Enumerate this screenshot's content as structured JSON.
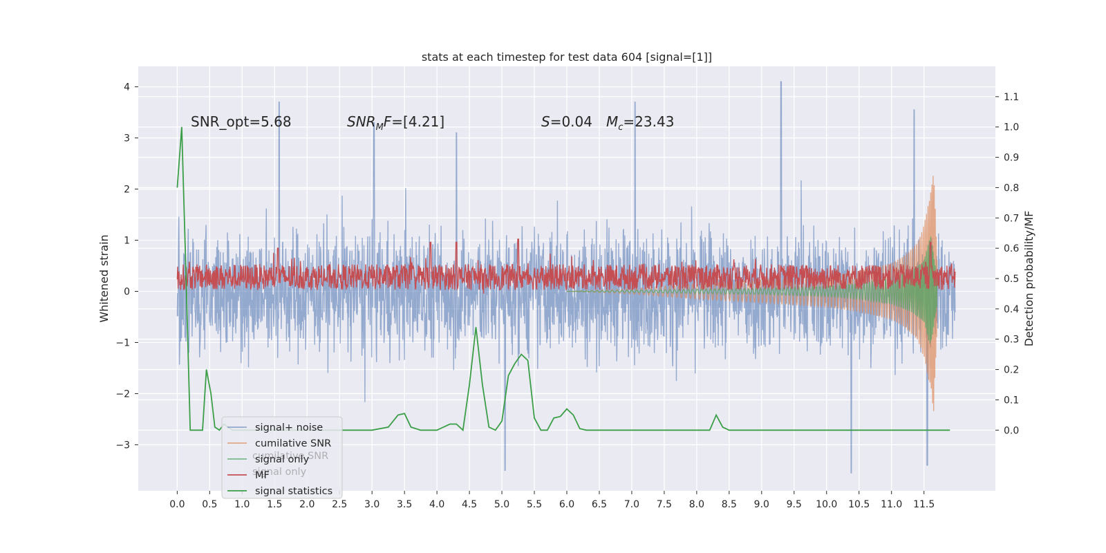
{
  "chart_data": {
    "type": "line",
    "title": "stats at each timestep for test data 604 [signal=[1]]",
    "xlabel": "",
    "ylabel": "Whitened strain",
    "y2label": "Detection probability/MF",
    "xlim": [
      -0.6,
      12.6
    ],
    "ylim": [
      -3.9,
      4.4
    ],
    "y2lim": [
      -0.2,
      1.2
    ],
    "grid": true,
    "legend_position": "lower-left",
    "x_ticks": [
      0.0,
      0.5,
      1.0,
      1.5,
      2.0,
      2.5,
      3.0,
      3.5,
      4.0,
      4.5,
      5.0,
      5.5,
      6.0,
      6.5,
      7.0,
      7.5,
      8.0,
      8.5,
      9.0,
      9.5,
      10.0,
      10.5,
      11.0,
      11.5
    ],
    "y_ticks": [
      -3,
      -2,
      -1,
      0,
      1,
      2,
      3,
      4
    ],
    "y2_ticks": [
      0.0,
      0.1,
      0.2,
      0.3,
      0.4,
      0.5,
      0.6,
      0.7,
      0.8,
      0.9,
      1.0,
      1.1
    ],
    "annotations": [
      "SNR_opt=5.68",
      "SNR_MF=[4.21]",
      "S=0.04",
      "M_c=23.43"
    ],
    "legend_ghost": [
      "cumilative SNR",
      "signal only"
    ],
    "colors": {
      "background": "#eaeaf2",
      "grid": "#ffffff",
      "signal_noise": "#4c72b0",
      "cumulative_snr": "#dd8452",
      "signal_only": "#55a868",
      "mf": "#c44e52",
      "signal_statistics": "#3a9e47"
    },
    "series": [
      {
        "name": "signal+ noise",
        "style": "dense noise band, amplitude about ±1.5 with peaks to ±4",
        "x_range": [
          0.0,
          11.98
        ],
        "typical_amplitude": 1.5,
        "peaks": [
          [
            1.57,
            3.7
          ],
          [
            3.03,
            3.3
          ],
          [
            4.3,
            3.1
          ],
          [
            9.3,
            4.1
          ],
          [
            11.35,
            3.55
          ],
          [
            7.05,
            3.7
          ],
          [
            5.05,
            -3.5
          ],
          [
            10.38,
            -3.55
          ],
          [
            11.55,
            -3.4
          ]
        ]
      },
      {
        "name": "cumilative SNR",
        "style": "chirp growing towards merger",
        "x": [
          6.0,
          7.0,
          8.0,
          9.0,
          10.0,
          10.5,
          11.0,
          11.2,
          11.4,
          11.5,
          11.6,
          11.65,
          11.7
        ],
        "envelope": [
          0.0,
          0.05,
          0.15,
          0.22,
          0.3,
          0.4,
          0.55,
          0.7,
          0.95,
          1.3,
          1.9,
          2.35,
          0.8
        ]
      },
      {
        "name": "signal only",
        "style": "chirp oscillation around 0 growing near merger",
        "x": [
          6.0,
          7.0,
          8.0,
          9.0,
          10.0,
          10.5,
          11.0,
          11.3,
          11.5,
          11.6,
          11.7
        ],
        "envelope": [
          0.0,
          0.02,
          0.04,
          0.06,
          0.1,
          0.15,
          0.25,
          0.4,
          0.6,
          1.1,
          0.3
        ]
      },
      {
        "name": "MF",
        "axis": "right",
        "style": "noisy trace around 0.5",
        "x_range": [
          0.0,
          11.98
        ],
        "baseline": 0.5,
        "peaks": [
          [
            3.9,
            0.62
          ],
          [
            4.3,
            0.62
          ],
          [
            5.25,
            0.63
          ],
          [
            1.55,
            0.6
          ],
          [
            11.6,
            0.62
          ]
        ]
      },
      {
        "name": "signal statistics",
        "axis": "right",
        "x": [
          0.0,
          0.07,
          0.13,
          0.2,
          0.26,
          0.32,
          0.39,
          0.45,
          0.52,
          0.58,
          0.65,
          0.72,
          0.85,
          1.0,
          1.5,
          2.0,
          2.5,
          3.0,
          3.25,
          3.4,
          3.5,
          3.6,
          3.75,
          3.9,
          4.0,
          4.2,
          4.3,
          4.4,
          4.5,
          4.6,
          4.7,
          4.8,
          4.9,
          5.0,
          5.1,
          5.2,
          5.3,
          5.4,
          5.5,
          5.6,
          5.7,
          5.8,
          5.9,
          6.0,
          6.1,
          6.2,
          6.3,
          7.0,
          8.0,
          8.2,
          8.3,
          8.4,
          8.5,
          8.6,
          9.0,
          10.0,
          11.0,
          11.5,
          11.9
        ],
        "y": [
          0.8,
          1.0,
          0.55,
          0.0,
          0.0,
          0.0,
          0.0,
          0.2,
          0.12,
          0.01,
          0.0,
          0.02,
          0.0,
          0.0,
          0.0,
          0.0,
          0.0,
          0.0,
          0.01,
          0.05,
          0.055,
          0.01,
          0.0,
          0.0,
          0.0,
          0.02,
          0.02,
          0.0,
          0.15,
          0.34,
          0.15,
          0.01,
          0.0,
          0.03,
          0.18,
          0.22,
          0.25,
          0.23,
          0.04,
          0.0,
          0.0,
          0.04,
          0.045,
          0.07,
          0.05,
          0.005,
          0.0,
          0.0,
          0.0,
          0.0,
          0.05,
          0.01,
          0.0,
          0.0,
          0.0,
          0.0,
          0.0,
          0.0,
          0.0
        ]
      }
    ]
  }
}
